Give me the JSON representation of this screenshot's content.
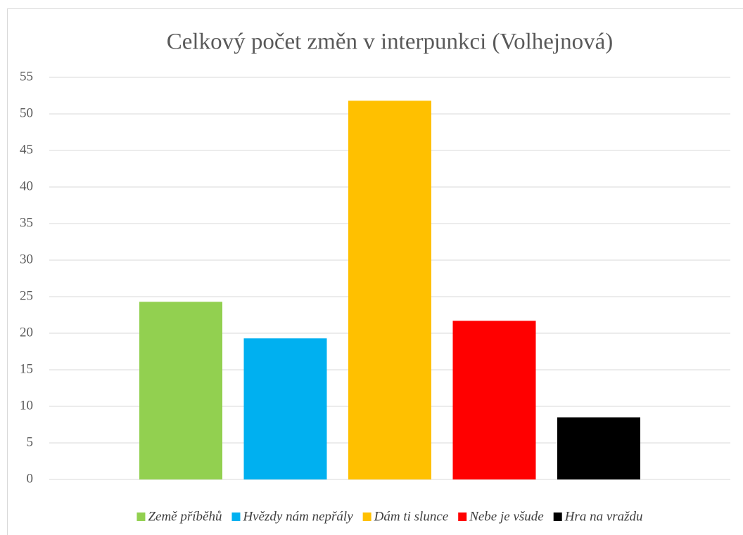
{
  "chart_data": {
    "type": "bar",
    "title": "Celkový počet změn v interpunkci (Volhejnová)",
    "categories": [
      null
    ],
    "series": [
      {
        "name": "Země příběhů",
        "color": "#92d050",
        "values": [
          24.3
        ]
      },
      {
        "name": "Hvězdy nám nepřály",
        "color": "#00b0f0",
        "values": [
          19.3
        ]
      },
      {
        "name": "Dám ti slunce",
        "color": "#ffc000",
        "values": [
          51.8
        ]
      },
      {
        "name": "Nebe je všude",
        "color": "#ff0000",
        "values": [
          21.7
        ]
      },
      {
        "name": "Hra na vraždu",
        "color": "#000000",
        "values": [
          8.5
        ]
      }
    ],
    "ylim": [
      0,
      55
    ],
    "yticks": [
      0,
      5,
      10,
      15,
      20,
      25,
      30,
      35,
      40,
      45,
      50,
      55
    ],
    "grid": true,
    "legend": "bottom"
  }
}
